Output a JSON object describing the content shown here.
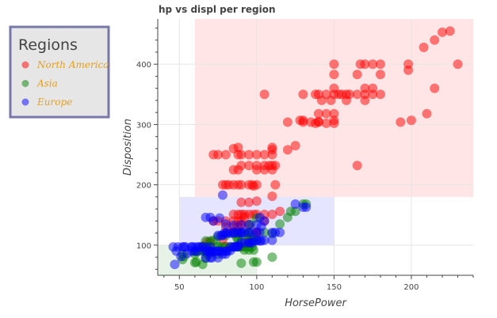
{
  "chart_data": {
    "type": "scatter",
    "title": "hp vs displ per region",
    "xlabel": "HorsePower",
    "ylabel": "Disposition",
    "xlim": [
      36,
      240
    ],
    "ylim": [
      50,
      475
    ],
    "xticks": [
      50,
      100,
      150,
      200
    ],
    "yticks": [
      100,
      200,
      300,
      400
    ],
    "grid": true,
    "legend": {
      "title": "Regions",
      "placement": "outside-top-left",
      "border_color": "#7777aa",
      "background": "#e6e6e6"
    },
    "regions": [
      {
        "name": "North America",
        "color": "#ff0000",
        "x_range": [
          60,
          240
        ],
        "y_range": [
          180,
          475
        ]
      },
      {
        "name": "Europe",
        "color": "#0000ff",
        "x_range": [
          50,
          150
        ],
        "y_range": [
          100,
          180
        ]
      },
      {
        "name": "Asia",
        "color": "#008000",
        "x_range": [
          36,
          100
        ],
        "y_range": [
          50,
          100
        ]
      }
    ],
    "series": [
      {
        "name": "North America",
        "color": "#ff0000",
        "points": [
          [
            225,
            455
          ],
          [
            220,
            453
          ],
          [
            215,
            440
          ],
          [
            208,
            428
          ],
          [
            198,
            400
          ],
          [
            198,
            390
          ],
          [
            230,
            400
          ],
          [
            175,
            400
          ],
          [
            170,
            400
          ],
          [
            167,
            400
          ],
          [
            180,
            400
          ],
          [
            150,
            400
          ],
          [
            150,
            383
          ],
          [
            165,
            383
          ],
          [
            180,
            383
          ],
          [
            175,
            360
          ],
          [
            170,
            360
          ],
          [
            150,
            350
          ],
          [
            160,
            350
          ],
          [
            155,
            350
          ],
          [
            145,
            350
          ],
          [
            140,
            350
          ],
          [
            130,
            350
          ],
          [
            138,
            350
          ],
          [
            165,
            350
          ],
          [
            170,
            350
          ],
          [
            175,
            350
          ],
          [
            180,
            350
          ],
          [
            150,
            360
          ],
          [
            153,
            350
          ],
          [
            158,
            350
          ],
          [
            142,
            340
          ],
          [
            148,
            340
          ],
          [
            158,
            340
          ],
          [
            170,
            340
          ],
          [
            105,
            350
          ],
          [
            215,
            360
          ],
          [
            210,
            318
          ],
          [
            200,
            307
          ],
          [
            193,
            304
          ],
          [
            140,
            318
          ],
          [
            145,
            318
          ],
          [
            150,
            318
          ],
          [
            150,
            307
          ],
          [
            140,
            304
          ],
          [
            135,
            304
          ],
          [
            130,
            304
          ],
          [
            120,
            304
          ],
          [
            150,
            302
          ],
          [
            138,
            302
          ],
          [
            145,
            302
          ],
          [
            140,
            305
          ],
          [
            128,
            307
          ],
          [
            130,
            307
          ],
          [
            125,
            265
          ],
          [
            120,
            258
          ],
          [
            110,
            258
          ],
          [
            110,
            262
          ],
          [
            105,
            250
          ],
          [
            110,
            250
          ],
          [
            95,
            250
          ],
          [
            90,
            250
          ],
          [
            100,
            250
          ],
          [
            88,
            250
          ],
          [
            88,
            262
          ],
          [
            80,
            250
          ],
          [
            75,
            250
          ],
          [
            72,
            250
          ],
          [
            85,
            260
          ],
          [
            105,
            232
          ],
          [
            110,
            232
          ],
          [
            112,
            232
          ],
          [
            108,
            232
          ],
          [
            100,
            232
          ],
          [
            95,
            232
          ],
          [
            90,
            232
          ],
          [
            88,
            225
          ],
          [
            85,
            225
          ],
          [
            100,
            225
          ],
          [
            105,
            225
          ],
          [
            110,
            225
          ],
          [
            165,
            232
          ],
          [
            82,
            200
          ],
          [
            80,
            200
          ],
          [
            78,
            200
          ],
          [
            85,
            200
          ],
          [
            88,
            200
          ],
          [
            90,
            200
          ],
          [
            95,
            200
          ],
          [
            97,
            200
          ],
          [
            100,
            200
          ],
          [
            98,
            198
          ],
          [
            112,
            200
          ],
          [
            110,
            181
          ],
          [
            100,
            173
          ],
          [
            95,
            171
          ],
          [
            90,
            171
          ],
          [
            85,
            151
          ],
          [
            88,
            151
          ],
          [
            90,
            151
          ],
          [
            95,
            151
          ],
          [
            98,
            151
          ],
          [
            100,
            151
          ],
          [
            92,
            151
          ],
          [
            105,
            151
          ],
          [
            110,
            151
          ],
          [
            115,
            156
          ],
          [
            80,
            140
          ],
          [
            85,
            140
          ],
          [
            88,
            140
          ],
          [
            90,
            140
          ],
          [
            75,
            140
          ],
          [
            72,
            140
          ],
          [
            85,
            130
          ],
          [
            88,
            130
          ],
          [
            90,
            133
          ],
          [
            95,
            133
          ],
          [
            100,
            120
          ],
          [
            105,
            140
          ],
          [
            92,
            146
          ],
          [
            90,
            98
          ],
          [
            88,
            120
          ],
          [
            70,
            105
          ],
          [
            68,
            105
          ],
          [
            65,
            98
          ],
          [
            70,
            89
          ],
          [
            80,
            98
          ],
          [
            85,
            122
          ],
          [
            95,
            108
          ],
          [
            100,
            122
          ],
          [
            80,
            130
          ],
          [
            78,
            110
          ]
        ]
      },
      {
        "name": "Asia",
        "color": "#008000",
        "points": [
          [
            60,
            71
          ],
          [
            61,
            72
          ],
          [
            65,
            68
          ],
          [
            67,
            78
          ],
          [
            68,
            91
          ],
          [
            70,
            97
          ],
          [
            75,
            97
          ],
          [
            75,
            85
          ],
          [
            68,
            85
          ],
          [
            70,
            86
          ],
          [
            88,
            97
          ],
          [
            90,
            97
          ],
          [
            92,
            97
          ],
          [
            95,
            97
          ],
          [
            95,
            108
          ],
          [
            97,
            108
          ],
          [
            100,
            108
          ],
          [
            110,
            119
          ],
          [
            120,
            146
          ],
          [
            122,
            156
          ],
          [
            125,
            156
          ],
          [
            130,
            168
          ],
          [
            132,
            168
          ],
          [
            115,
            135
          ],
          [
            100,
            145
          ],
          [
            96,
            135
          ],
          [
            95,
            120
          ],
          [
            92,
            119
          ],
          [
            88,
            119
          ],
          [
            85,
            119
          ],
          [
            80,
            116
          ],
          [
            75,
            114
          ],
          [
            72,
            108
          ],
          [
            70,
            107
          ],
          [
            67,
            107
          ],
          [
            88,
            108
          ],
          [
            90,
            108
          ],
          [
            97,
            113
          ],
          [
            94,
            120
          ],
          [
            87,
            113
          ],
          [
            110,
            80
          ],
          [
            100,
            72
          ],
          [
            98,
            72
          ],
          [
            90,
            70
          ],
          [
            65,
            90
          ],
          [
            60,
            90
          ],
          [
            65,
            98
          ],
          [
            52,
            85
          ],
          [
            53,
            81
          ],
          [
            52,
            76
          ],
          [
            60,
            85
          ],
          [
            61,
            89
          ],
          [
            67,
            91
          ],
          [
            70,
            90
          ],
          [
            65,
            91
          ],
          [
            68,
            98
          ],
          [
            75,
            98
          ],
          [
            78,
            97
          ],
          [
            80,
            97
          ],
          [
            83,
            97
          ],
          [
            85,
            97
          ],
          [
            88,
            97
          ],
          [
            92,
            92
          ],
          [
            95,
            92
          ],
          [
            98,
            92
          ],
          [
            97,
            97
          ],
          [
            105,
            121
          ]
        ]
      },
      {
        "name": "Europe",
        "color": "#0000ff",
        "points": [
          [
            46,
            97
          ],
          [
            48,
            90
          ],
          [
            49,
            97
          ],
          [
            52,
            97
          ],
          [
            53,
            97
          ],
          [
            54,
            97
          ],
          [
            58,
            97
          ],
          [
            60,
            97
          ],
          [
            62,
            97
          ],
          [
            63,
            97
          ],
          [
            65,
            97
          ],
          [
            67,
            97
          ],
          [
            67,
            90
          ],
          [
            68,
            90
          ],
          [
            69,
            90
          ],
          [
            70,
            90
          ],
          [
            71,
            90
          ],
          [
            74,
            90
          ],
          [
            75,
            90
          ],
          [
            76,
            90
          ],
          [
            78,
            90
          ],
          [
            80,
            90
          ],
          [
            81,
            90
          ],
          [
            83,
            97
          ],
          [
            85,
            97
          ],
          [
            86,
            97
          ],
          [
            87,
            98
          ],
          [
            88,
            98
          ],
          [
            90,
            104
          ],
          [
            92,
            104
          ],
          [
            95,
            104
          ],
          [
            97,
            104
          ],
          [
            98,
            107
          ],
          [
            100,
            107
          ],
          [
            102,
            107
          ],
          [
            103,
            107
          ],
          [
            105,
            108
          ],
          [
            110,
            108
          ],
          [
            110,
            121
          ],
          [
            112,
            121
          ],
          [
            115,
            121
          ],
          [
            67,
            79
          ],
          [
            70,
            79
          ],
          [
            71,
            79
          ],
          [
            75,
            79
          ],
          [
            78,
            85
          ],
          [
            80,
            85
          ],
          [
            72,
            89
          ],
          [
            70,
            97
          ],
          [
            58,
            97
          ],
          [
            77,
            116
          ],
          [
            75,
            116
          ],
          [
            78,
            116
          ],
          [
            79,
            120
          ],
          [
            80,
            120
          ],
          [
            81,
            120
          ],
          [
            83,
            120
          ],
          [
            85,
            120
          ],
          [
            86,
            121
          ],
          [
            88,
            121
          ],
          [
            90,
            121
          ],
          [
            92,
            121
          ],
          [
            95,
            121
          ],
          [
            97,
            121
          ],
          [
            100,
            121
          ],
          [
            102,
            121
          ],
          [
            103,
            131
          ],
          [
            130,
            163
          ],
          [
            132,
            163
          ],
          [
            125,
            168
          ],
          [
            78,
            183
          ],
          [
            72,
            140
          ],
          [
            70,
            146
          ],
          [
            67,
            146
          ],
          [
            76,
            145
          ],
          [
            80,
            135
          ],
          [
            85,
            133
          ],
          [
            90,
            134
          ],
          [
            95,
            134
          ],
          [
            100,
            134
          ],
          [
            102,
            146
          ],
          [
            105,
            140
          ],
          [
            47,
            68
          ],
          [
            51,
            81
          ],
          [
            55,
            86
          ],
          [
            58,
            90
          ],
          [
            60,
            90
          ],
          [
            62,
            90
          ],
          [
            90,
            120
          ],
          [
            95,
            104
          ],
          [
            88,
            98
          ],
          [
            83,
            91
          ]
        ]
      }
    ]
  }
}
